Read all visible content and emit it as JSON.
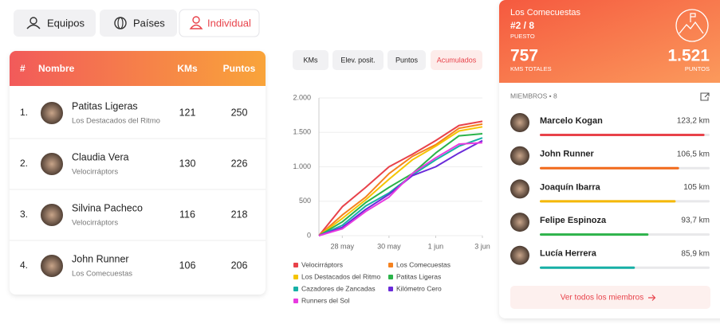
{
  "tabs": {
    "items": [
      "Equipos",
      "Países",
      "Individual"
    ],
    "active": 2
  },
  "table": {
    "headers": [
      "#",
      "Nombre",
      "KMs",
      "Puntos"
    ],
    "rows": [
      {
        "rank": "1.",
        "name": "Patitas Ligeras",
        "team": "Los Destacados del Ritmo",
        "kms": 121,
        "points": 250
      },
      {
        "rank": "2.",
        "name": "Claudia Vera",
        "team": "Velocirráptors",
        "kms": 130,
        "points": 226
      },
      {
        "rank": "3.",
        "name": "Silvina Pacheco",
        "team": "Velocirráptors",
        "kms": 116,
        "points": 218
      },
      {
        "rank": "4.",
        "name": "John Runner",
        "team": "Los Comecuestas",
        "kms": 106,
        "points": 206
      }
    ]
  },
  "chart_tabs": {
    "items": [
      "KMs",
      "Elev. posit.",
      "Puntos",
      "Acumulados"
    ],
    "active": 3
  },
  "chart_data": {
    "type": "line",
    "categories": [
      null,
      "28 may",
      null,
      "30 may",
      null,
      "1 jun",
      null,
      "3 jun"
    ],
    "ylim": [
      0,
      2000
    ],
    "yticks": [
      0,
      500,
      {
        "value": 1000,
        "label": "1.000"
      },
      {
        "value": 1500,
        "label": "1.500"
      },
      {
        "value": 2000,
        "label": "2.000"
      }
    ],
    "grid": true,
    "series": [
      {
        "name": "Velocirráptors",
        "color": "#e8424a",
        "values": [
          0,
          420,
          700,
          1000,
          1180,
          1380,
          1600,
          1660
        ]
      },
      {
        "name": "Los Comecuestas",
        "color": "#f5821f",
        "values": [
          0,
          300,
          560,
          900,
          1150,
          1320,
          1560,
          1620
        ]
      },
      {
        "name": "Los Destacados del Ritmo",
        "color": "#f5c400",
        "values": [
          0,
          250,
          520,
          820,
          1100,
          1300,
          1520,
          1580
        ]
      },
      {
        "name": "Patitas Ligeras",
        "color": "#2bb34a",
        "values": [
          0,
          200,
          480,
          700,
          900,
          1200,
          1450,
          1480
        ]
      },
      {
        "name": "Cazadores de Zancadas",
        "color": "#17b0a6",
        "values": [
          0,
          150,
          430,
          620,
          880,
          1100,
          1300,
          1420
        ]
      },
      {
        "name": "Kilómetro Cero",
        "color": "#6a2bd9",
        "values": [
          0,
          120,
          380,
          600,
          870,
          1000,
          1200,
          1380
        ]
      },
      {
        "name": "Runners del Sol",
        "color": "#e83ae0",
        "values": [
          0,
          100,
          350,
          560,
          900,
          1130,
          1330,
          1350
        ]
      }
    ]
  },
  "right_card": {
    "team": "Los Comecuestas",
    "rank": "#2 / 8",
    "rank_label": "PUESTO",
    "km_total": 757,
    "km_total_label": "KMS TOTALES",
    "points": "1.521",
    "points_label": "PUNTOS",
    "members_title": "MIEMBROS • 8",
    "members": [
      {
        "name": "Marcelo Kogan",
        "km": "123,2 km",
        "progress": 0.97,
        "color": "#e8424a"
      },
      {
        "name": "John Runner",
        "km": "106,5 km",
        "progress": 0.82,
        "color": "#f26a1b"
      },
      {
        "name": "Joaquín Ibarra",
        "km": "105 km",
        "progress": 0.8,
        "color": "#f5b800"
      },
      {
        "name": "Felipe Espinoza",
        "km": "93,7 km",
        "progress": 0.64,
        "color": "#2db34a"
      },
      {
        "name": "Lucía Herrera",
        "km": "85,9 km",
        "progress": 0.56,
        "color": "#17b0a6"
      }
    ],
    "button": "Ver todos los miembros"
  }
}
